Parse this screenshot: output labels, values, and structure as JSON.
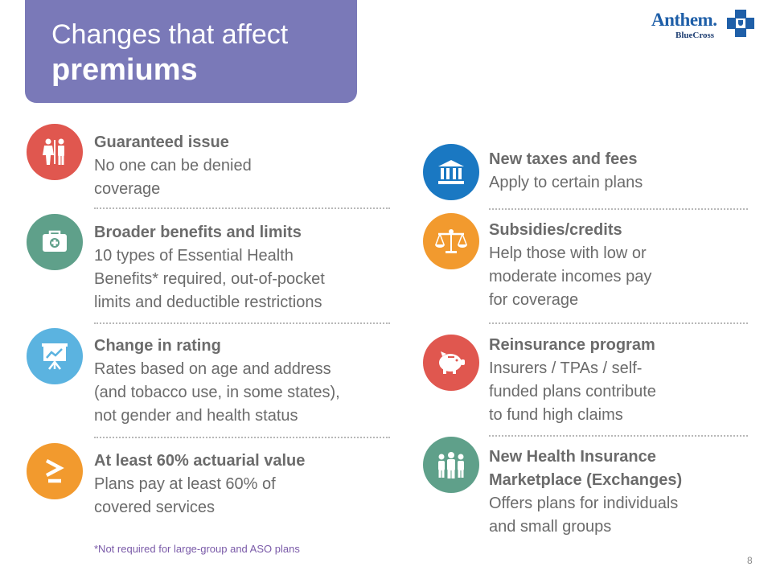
{
  "title": {
    "line1": "Changes that affect",
    "line2": "premiums"
  },
  "logo": {
    "name": "Anthem.",
    "sub": "BlueCross"
  },
  "left_items": [
    {
      "title": "Guaranteed issue",
      "desc": "No one can be denied\ncoverage",
      "icon": "restroom-people-icon",
      "color": "#e0574f"
    },
    {
      "title": "Broader benefits and limits",
      "desc": "10 types of Essential Health\nBenefits* required, out-of-pocket\nlimits and deductible restrictions",
      "icon": "medical-bag-icon",
      "color": "#5fa08a"
    },
    {
      "title": "Change in rating",
      "desc": "Rates based on age and address\n(and tobacco use, in some states),\nnot gender and health status",
      "icon": "presentation-board-icon",
      "color": "#5bb3e0"
    },
    {
      "title": "At least 60% actuarial value",
      "desc": "Plans pay at least 60% of\ncovered services",
      "icon": "greater-than-or-equal-icon",
      "color": "#f29a2e"
    }
  ],
  "right_items": [
    {
      "title": "New taxes and fees",
      "desc": "Apply to certain plans",
      "icon": "bank-building-icon",
      "color": "#1a78c2"
    },
    {
      "title": "Subsidies/credits",
      "desc": "Help those with low or\nmoderate incomes pay\nfor coverage",
      "icon": "balance-scale-icon",
      "color": "#f29a2e"
    },
    {
      "title": "Reinsurance program",
      "desc": "Insurers / TPAs / self-\nfunded plans contribute\nto fund high claims",
      "icon": "piggy-bank-icon",
      "color": "#e0574f"
    },
    {
      "title": "New Health Insurance\nMarketplace (Exchanges)",
      "desc": "Offers plans for individuals\nand small groups",
      "icon": "group-people-icon",
      "color": "#5fa08a"
    }
  ],
  "footnote": "*Not required for large-group and ASO plans",
  "page_number": "8"
}
